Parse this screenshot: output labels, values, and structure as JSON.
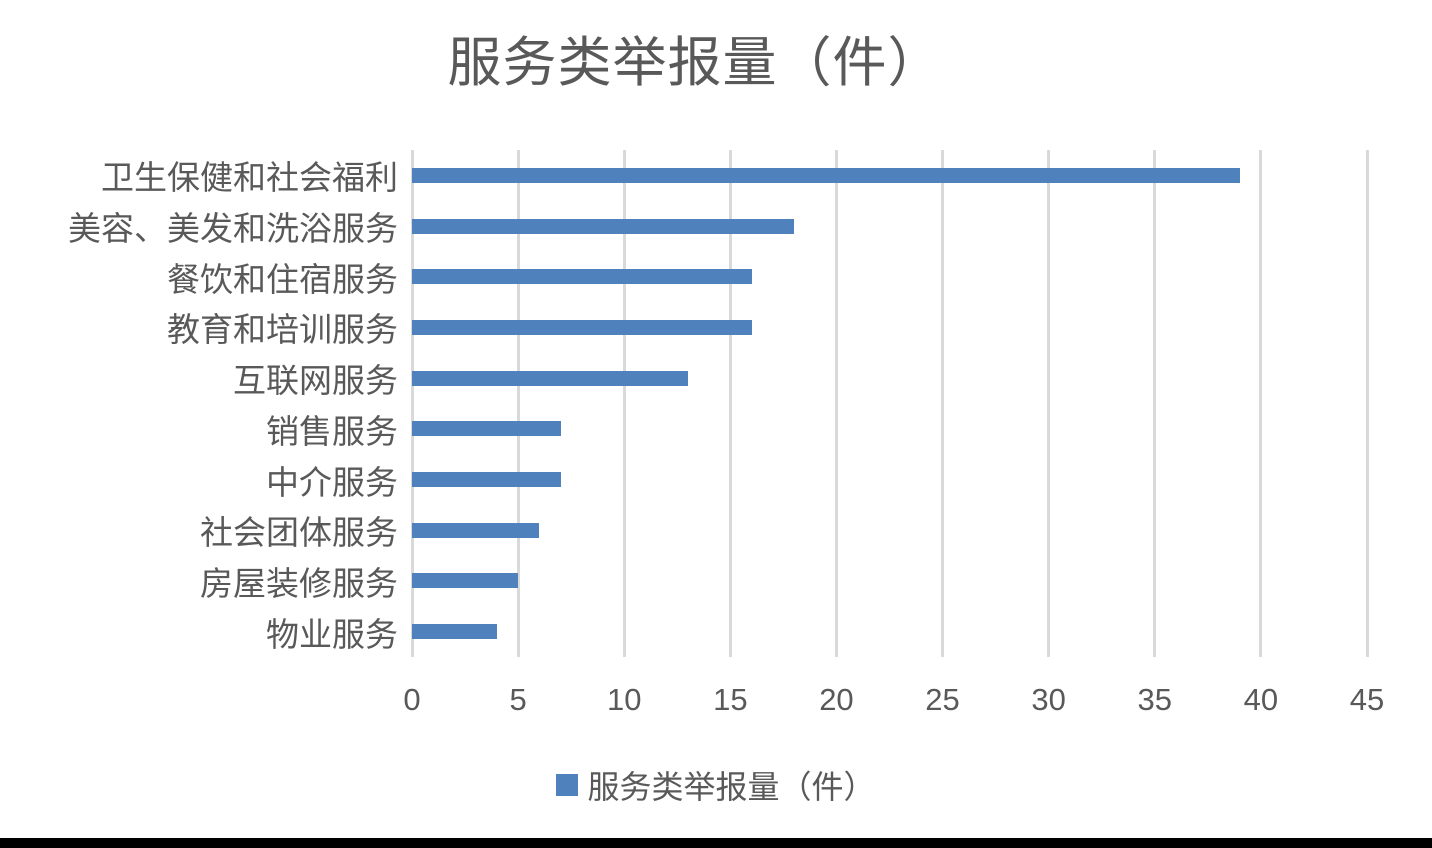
{
  "title": "服务类举报量（件）",
  "legend": {
    "label": "服务类举报量（件）",
    "swatch_color": "#4f81bd"
  },
  "chart_data": {
    "type": "bar",
    "orientation": "horizontal",
    "title": "服务类举报量（件）",
    "categories": [
      "卫生保健和社会福利",
      "美容、美发和洗浴服务",
      "餐饮和住宿服务",
      "教育和培训服务",
      "互联网服务",
      "销售服务",
      "中介服务",
      "社会团体服务",
      "房屋装修服务",
      "物业服务"
    ],
    "values": [
      39,
      18,
      16,
      16,
      13,
      7,
      7,
      6,
      5,
      4
    ],
    "xlabel": "",
    "ylabel": "",
    "xlim": [
      0,
      45
    ],
    "x_ticks": [
      0,
      5,
      10,
      15,
      20,
      25,
      30,
      35,
      40,
      45
    ],
    "grid": "vertical",
    "legend_position": "bottom",
    "bar_color": "#4f81bd",
    "gridline_color": "#d9d9d9",
    "text_color": "#595959"
  }
}
